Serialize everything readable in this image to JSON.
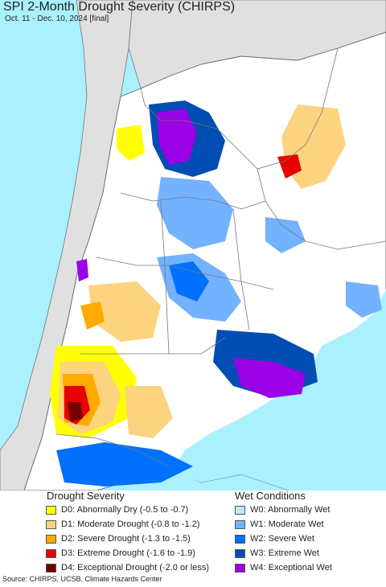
{
  "title": "SPI 2-Month Drought Severity (CHIRPS)",
  "subtitle": "Oct. 11 - Dec. 10, 2024 [final]",
  "legend": {
    "drought_heading": "Drought Severity",
    "wet_heading": "Wet Conditions",
    "drought": [
      {
        "label": "D0: Abnormally Dry (-0.5 to -0.7)",
        "color": "#ffff00"
      },
      {
        "label": "D1: Moderate Drought (-0.8 to -1.2)",
        "color": "#fcd37f"
      },
      {
        "label": "D2: Severe Drought (-1.3 to -1.5)",
        "color": "#ffaa00"
      },
      {
        "label": "D3: Extreme Drought (-1.6 to -1.9)",
        "color": "#e60000"
      },
      {
        "label": "D4: Exceptional Drought (-2.0 or less)",
        "color": "#730000"
      }
    ],
    "wet": [
      {
        "label": "W0: Abnormally Wet",
        "color": "#bfe8ff"
      },
      {
        "label": "W1: Moderate Wet",
        "color": "#73b2ff"
      },
      {
        "label": "W2: Severe Wet",
        "color": "#0070ff"
      },
      {
        "label": "W3: Extreme Wet",
        "color": "#004db3"
      },
      {
        "label": "W4: Exceptional Wet",
        "color": "#9b00e6"
      }
    ]
  },
  "source": "Source: CHIRPS, UCSB, Climate Hazards Center",
  "colors": {
    "ocean": "#aaf0ff",
    "land": "#ffffff",
    "outside": "#e0e0e0",
    "border": "#777777"
  }
}
